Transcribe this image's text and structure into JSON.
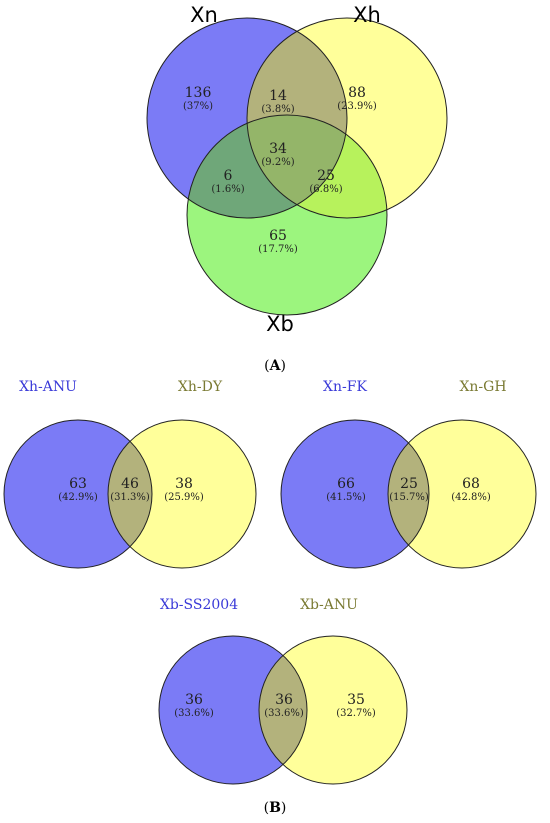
{
  "colors": {
    "blue": "#7b7bf6",
    "yellow": "#ffff9a",
    "green": "#9cf57e",
    "blue_yellow": "#b3b27c",
    "blue_green": "#6fa779",
    "yellow_green": "#b7f25c",
    "all_three": "#94b569",
    "blue_label": "#3a3ad8",
    "olive_label": "#7a7a33"
  },
  "panel_a": {
    "label_prefix": "(",
    "label_letter": "A",
    "label_suffix": ")",
    "sets": {
      "xn": "Xn",
      "xh": "Xh",
      "xb": "Xb"
    },
    "regions": {
      "xn_only": {
        "count": "136",
        "percent": "(37%)"
      },
      "xh_only": {
        "count": "88",
        "percent": "(23.9%)"
      },
      "xb_only": {
        "count": "65",
        "percent": "(17.7%)"
      },
      "xn_xh": {
        "count": "14",
        "percent": "(3.8%)"
      },
      "xn_xb": {
        "count": "6",
        "percent": "(1.6%)"
      },
      "xh_xb": {
        "count": "25",
        "percent": "(6.8%)"
      },
      "all": {
        "count": "34",
        "percent": "(9.2%)"
      }
    }
  },
  "panel_b": {
    "label_prefix": "(",
    "label_letter": "B",
    "label_suffix": ")",
    "venn1": {
      "left_name": "Xh-ANU",
      "right_name": "Xh-DY",
      "left": {
        "count": "63",
        "percent": "(42.9%)"
      },
      "overlap": {
        "count": "46",
        "percent": "(31.3%)"
      },
      "right": {
        "count": "38",
        "percent": "(25.9%)"
      }
    },
    "venn2": {
      "left_name": "Xn-FK",
      "right_name": "Xn-GH",
      "left": {
        "count": "66",
        "percent": "(41.5%)"
      },
      "overlap": {
        "count": "25",
        "percent": "(15.7%)"
      },
      "right": {
        "count": "68",
        "percent": "(42.8%)"
      }
    },
    "venn3": {
      "left_name": "Xb-SS2004",
      "right_name": "Xb-ANU",
      "left": {
        "count": "36",
        "percent": "(33.6%)"
      },
      "overlap": {
        "count": "36",
        "percent": "(33.6%)"
      },
      "right": {
        "count": "35",
        "percent": "(32.7%)"
      }
    }
  }
}
